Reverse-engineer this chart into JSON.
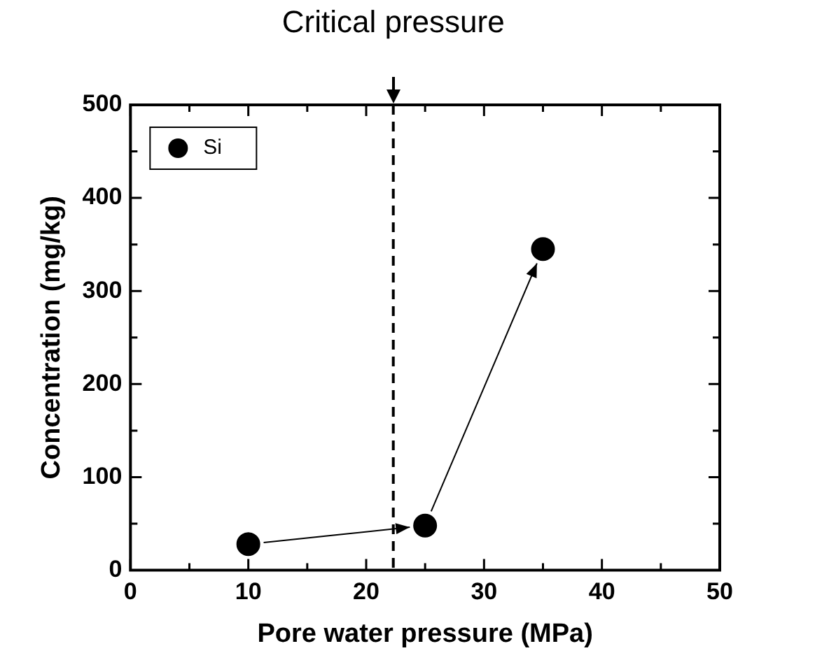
{
  "chart_data": {
    "type": "scatter",
    "xlabel": "Pore water pressure (MPa)",
    "ylabel": "Concentration (mg/kg)",
    "x": [
      10,
      25,
      35
    ],
    "series": [
      {
        "name": "Si",
        "color": "#000000",
        "values": [
          28,
          48,
          345
        ]
      }
    ],
    "xlim": [
      0,
      50
    ],
    "xticks": [
      0,
      {
        "value": 5,
        "label": null
      },
      10,
      {
        "value": 15,
        "label": null
      },
      20,
      {
        "value": 25,
        "label": null
      },
      30,
      {
        "value": 35,
        "label": null
      },
      40,
      {
        "value": 45,
        "label": null
      },
      50
    ],
    "ylim": [
      0,
      500
    ],
    "yticks": [
      0,
      {
        "value": 50,
        "label": null
      },
      100,
      {
        "value": 150,
        "label": null
      },
      200,
      {
        "value": 250,
        "label": null
      },
      300,
      {
        "value": 350,
        "label": null
      },
      400,
      {
        "value": 450,
        "label": null
      },
      500
    ],
    "ref_lines": [
      {
        "axis": "x",
        "value": 22.3,
        "label": "Critical pressure",
        "line_style": "dashed",
        "color": "#000000"
      }
    ],
    "grid": false,
    "legend": "top left",
    "marker": "circle"
  }
}
